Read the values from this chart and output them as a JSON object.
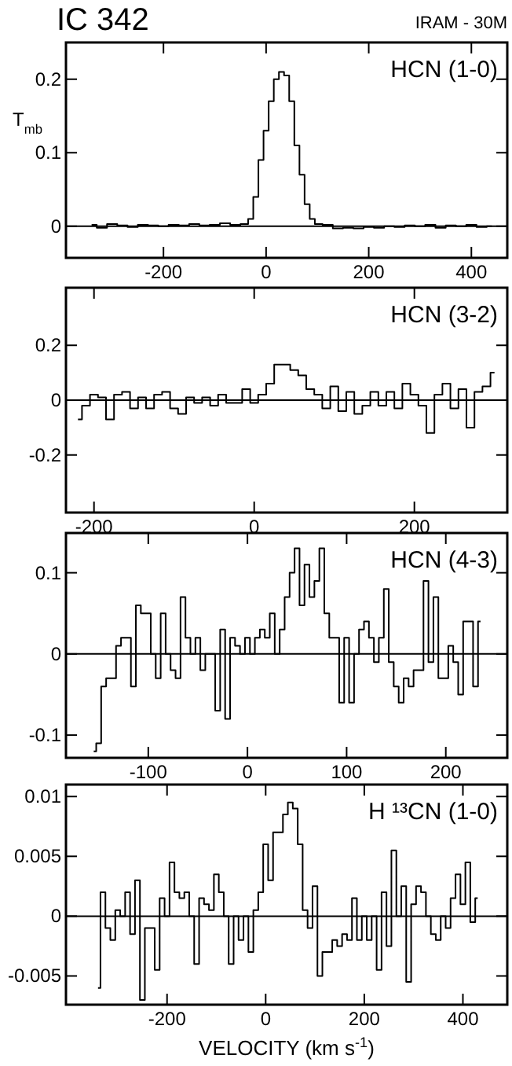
{
  "chart_data": [
    {
      "type": "step",
      "title": "IC 342",
      "ylabel": "T$_{mb}$",
      "annotations": [
        "IRAM - 30M"
      ],
      "xlim": [
        -390,
        470
      ],
      "ylim": [
        -0.043,
        0.25
      ],
      "xticks": [
        -200,
        0,
        200,
        400
      ],
      "yticks": [
        0,
        0.1,
        0.2
      ],
      "ref_lines": [
        {
          "axis": "y",
          "value": 0
        }
      ],
      "series": [
        {
          "name": "HCN (1-0)",
          "color": "#000000",
          "x": [
            -340,
            -320,
            -300,
            -280,
            -260,
            -240,
            -220,
            -200,
            -180,
            -160,
            -140,
            -120,
            -100,
            -80,
            -60,
            -40,
            -30,
            -20,
            -10,
            0,
            10,
            20,
            30,
            40,
            50,
            60,
            70,
            80,
            90,
            100,
            120,
            140,
            160,
            180,
            200,
            220,
            240,
            260,
            280,
            300,
            320,
            340,
            360,
            380,
            400,
            420,
            440
          ],
          "values": [
            0.002,
            -0.002,
            0.003,
            0.001,
            -0.001,
            0.002,
            0.001,
            0.0,
            0.002,
            0.001,
            0.003,
            0.001,
            0.002,
            0.004,
            0.002,
            0.003,
            0.01,
            0.04,
            0.09,
            0.13,
            0.17,
            0.2,
            0.21,
            0.205,
            0.17,
            0.11,
            0.07,
            0.03,
            0.01,
            0.003,
            0.002,
            -0.003,
            -0.002,
            -0.003,
            -0.001,
            -0.002,
            0.0,
            -0.001,
            0.001,
            0.0,
            0.002,
            -0.002,
            0.001,
            0.0,
            0.002,
            -0.001,
            0.0
          ]
        }
      ]
    },
    {
      "type": "step",
      "xlim": [
        -235,
        316
      ],
      "ylim": [
        -0.41,
        0.41
      ],
      "xticks": [
        -200,
        0,
        200
      ],
      "yticks": [
        -0.2,
        0,
        0.2
      ],
      "ref_lines": [
        {
          "axis": "y",
          "value": 0
        }
      ],
      "series": [
        {
          "name": "HCN (3-2)",
          "color": "#000000",
          "x": [
            -220,
            -210,
            -200,
            -190,
            -180,
            -170,
            -160,
            -150,
            -140,
            -130,
            -120,
            -110,
            -100,
            -90,
            -80,
            -70,
            -60,
            -50,
            -40,
            -30,
            -20,
            -10,
            0,
            10,
            20,
            30,
            40,
            50,
            60,
            70,
            80,
            90,
            100,
            110,
            120,
            130,
            140,
            150,
            160,
            170,
            180,
            190,
            200,
            210,
            220,
            230,
            240,
            250,
            260,
            270,
            280,
            290,
            300
          ],
          "values": [
            -0.07,
            -0.02,
            0.02,
            0.01,
            -0.07,
            0.02,
            0.03,
            -0.03,
            0.01,
            -0.03,
            0.02,
            0.03,
            -0.03,
            -0.05,
            0.01,
            -0.01,
            0.01,
            -0.02,
            0.02,
            -0.01,
            -0.01,
            0.04,
            -0.01,
            0.02,
            0.06,
            0.13,
            0.13,
            0.11,
            0.09,
            0.04,
            0.02,
            -0.03,
            0.05,
            -0.04,
            0.03,
            -0.05,
            -0.02,
            0.03,
            -0.02,
            0.03,
            -0.03,
            0.06,
            0.02,
            -0.02,
            -0.12,
            0.02,
            0.06,
            -0.03,
            0.04,
            -0.1,
            0.03,
            0.05,
            0.1
          ]
        }
      ]
    },
    {
      "type": "step",
      "xlim": [
        -183,
        262
      ],
      "ylim": [
        -0.128,
        0.149
      ],
      "xticks": [
        -100,
        0,
        100,
        200
      ],
      "yticks": [
        -0.1,
        0,
        0.1
      ],
      "ref_lines": [
        {
          "axis": "y",
          "value": 0
        }
      ],
      "series": [
        {
          "name": "HCN (4-3)",
          "color": "#000000",
          "x": [
            -155,
            -150,
            -145,
            -140,
            -135,
            -130,
            -125,
            -120,
            -115,
            -110,
            -105,
            -100,
            -95,
            -90,
            -85,
            -80,
            -75,
            -70,
            -65,
            -60,
            -55,
            -50,
            -45,
            -40,
            -35,
            -30,
            -25,
            -20,
            -15,
            -10,
            -5,
            0,
            5,
            10,
            15,
            20,
            25,
            30,
            35,
            40,
            45,
            50,
            55,
            60,
            65,
            70,
            75,
            80,
            85,
            90,
            95,
            100,
            105,
            110,
            115,
            120,
            125,
            130,
            135,
            140,
            145,
            150,
            155,
            160,
            165,
            170,
            175,
            180,
            185,
            190,
            195,
            200,
            205,
            210,
            215,
            220,
            225,
            230,
            235
          ],
          "values": [
            -0.12,
            -0.11,
            -0.04,
            -0.03,
            -0.03,
            0.01,
            0.02,
            0.02,
            -0.04,
            0.06,
            0.05,
            0.05,
            0.0,
            -0.03,
            0.05,
            0.0,
            -0.02,
            -0.03,
            0.07,
            0.02,
            0.0,
            0.02,
            -0.02,
            0.0,
            0.0,
            -0.07,
            0.03,
            -0.08,
            0.02,
            0.01,
            0.0,
            0.02,
            0.0,
            0.02,
            0.03,
            0.02,
            0.05,
            0.0,
            0.03,
            0.07,
            0.1,
            0.13,
            0.06,
            0.11,
            0.07,
            0.09,
            0.13,
            0.05,
            0.02,
            0.02,
            -0.06,
            0.02,
            -0.06,
            0.0,
            0.03,
            0.04,
            0.02,
            -0.01,
            0.02,
            0.08,
            -0.01,
            -0.04,
            -0.06,
            -0.03,
            -0.04,
            -0.02,
            -0.02,
            0.09,
            -0.01,
            0.07,
            -0.03,
            -0.03,
            0.01,
            -0.01,
            -0.05,
            0.04,
            0.04,
            -0.04,
            0.04
          ]
        }
      ]
    },
    {
      "type": "step",
      "xlabel": "VELOCITY (km s$^{-1}$)",
      "xlim": [
        -405,
        490
      ],
      "ylim": [
        -0.0074,
        0.011
      ],
      "xticks": [
        -200,
        0,
        200,
        400
      ],
      "yticks": [
        -0.005,
        0,
        0.005,
        0.01
      ],
      "ref_lines": [
        {
          "axis": "y",
          "value": 0
        }
      ],
      "series": [
        {
          "name": "H ¹³CN (1-0)",
          "color": "#000000",
          "x": [
            -340,
            -330,
            -320,
            -310,
            -300,
            -290,
            -280,
            -270,
            -260,
            -250,
            -240,
            -230,
            -220,
            -210,
            -200,
            -190,
            -180,
            -170,
            -160,
            -150,
            -140,
            -130,
            -120,
            -110,
            -100,
            -90,
            -80,
            -70,
            -60,
            -50,
            -40,
            -30,
            -20,
            -10,
            0,
            10,
            20,
            30,
            40,
            50,
            60,
            70,
            80,
            90,
            100,
            110,
            120,
            130,
            140,
            150,
            160,
            170,
            180,
            190,
            200,
            210,
            220,
            230,
            240,
            250,
            260,
            270,
            280,
            290,
            300,
            310,
            320,
            330,
            340,
            350,
            360,
            370,
            380,
            390,
            400,
            410,
            420,
            430
          ],
          "values": [
            -0.006,
            0.002,
            -0.001,
            -0.002,
            0.0005,
            0.0,
            0.002,
            -0.0015,
            0.003,
            -0.007,
            -0.001,
            -0.001,
            -0.0045,
            0.0015,
            0.0,
            0.0045,
            0.002,
            0.0015,
            0.002,
            0.0,
            -0.004,
            0.0015,
            0.001,
            0.0005,
            0.0035,
            0.002,
            0.0,
            -0.004,
            0.0,
            -0.002,
            0.0,
            -0.003,
            0.0005,
            0.002,
            0.006,
            0.003,
            0.007,
            0.007,
            0.0085,
            0.0095,
            0.009,
            0.006,
            0.0005,
            -0.001,
            0.0025,
            -0.005,
            -0.003,
            -0.003,
            -0.002,
            -0.0025,
            -0.0015,
            -0.002,
            0.0015,
            -0.002,
            0.0,
            -0.002,
            0.0,
            -0.0045,
            0.002,
            -0.0025,
            0.0055,
            0.0,
            0.0025,
            -0.0055,
            0.001,
            0.0025,
            0.002,
            0.0,
            -0.0015,
            -0.002,
            0.0,
            -0.001,
            0.0015,
            0.0035,
            0.001,
            0.0045,
            -0.0005,
            0.0015
          ]
        }
      ]
    }
  ]
}
